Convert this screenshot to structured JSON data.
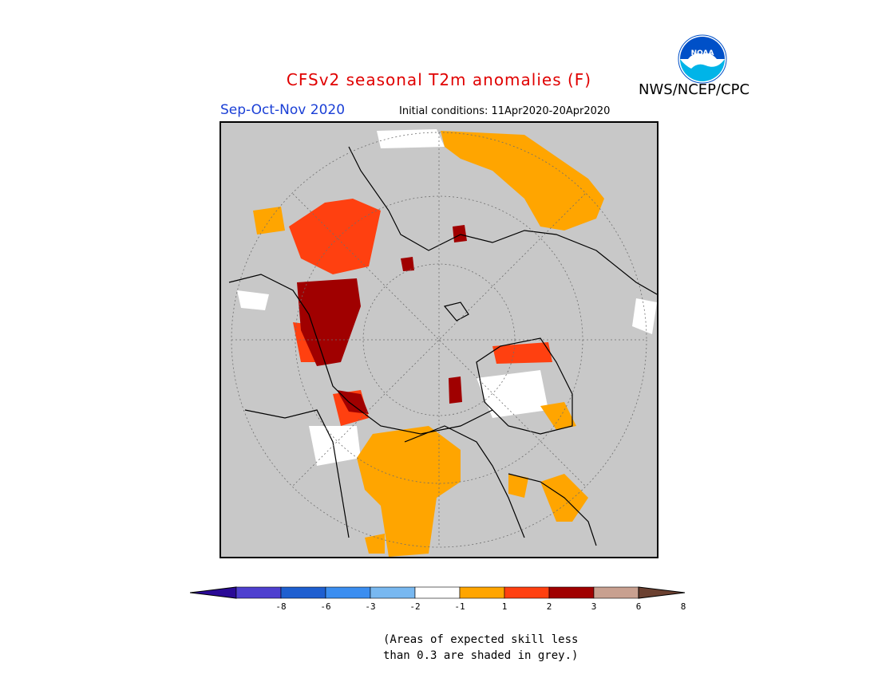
{
  "header": {
    "title": "CFSv2 seasonal T2m anomalies (F)",
    "agency": "NWS/NCEP/CPC",
    "season": "Sep-Oct-Nov 2020",
    "initial_conditions": "Initial conditions: 11Apr2020-20Apr2020",
    "logo_text": "NOAA"
  },
  "legend": {
    "tick_labels": [
      "-8",
      "-6",
      "-3",
      "-2",
      "-1",
      "1",
      "2",
      "3",
      "6",
      "8"
    ],
    "colors": [
      "#2a0a96",
      "#4e3fcf",
      "#1e5fd0",
      "#3b8ef0",
      "#78b8f0",
      "#ffffff",
      "#ffa500",
      "#ff4010",
      "#a00000",
      "#c8a090",
      "#6b4030"
    ],
    "note_line1": "(Areas of expected skill less",
    "note_line2": "than 0.3 are shaded in grey.)"
  },
  "colors": {
    "title": "#e00000",
    "season": "#1a3fd6",
    "map_background": "#c8c8c8",
    "no_skill_grey": "#c8c8c8"
  }
}
